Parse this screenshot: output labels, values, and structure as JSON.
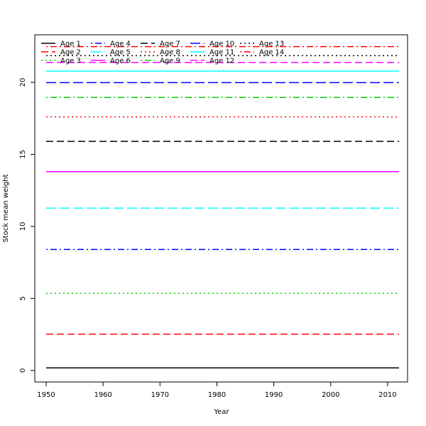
{
  "chart_data": {
    "type": "line",
    "title": "",
    "xlabel": "Year",
    "ylabel": "Stock mean weight",
    "xlim": [
      1948,
      2013.5
    ],
    "ylim": [
      -0.8,
      23.3
    ],
    "xticks": [
      1950,
      1960,
      1970,
      1980,
      1990,
      2000,
      2010
    ],
    "yticks": [
      0,
      5,
      10,
      15,
      20
    ],
    "x_range": [
      1950,
      2012
    ],
    "grid": false,
    "legend_position": "top-left",
    "series": [
      {
        "name": "Age 1",
        "value": 0.18,
        "color": "#000000",
        "dash": "solid"
      },
      {
        "name": "Age 2",
        "value": 2.52,
        "color": "#FF0000",
        "dash": "dashed"
      },
      {
        "name": "Age 3",
        "value": 5.35,
        "color": "#00CD00",
        "dash": "dotted"
      },
      {
        "name": "Age 4",
        "value": 8.4,
        "color": "#0000FF",
        "dash": "dotdash"
      },
      {
        "name": "Age 5",
        "value": 11.27,
        "color": "#00FFFF",
        "dash": "longdash"
      },
      {
        "name": "Age 6",
        "value": 13.8,
        "color": "#FF00FF",
        "dash": "solid"
      },
      {
        "name": "Age 7",
        "value": 15.9,
        "color": "#000000",
        "dash": "dashed"
      },
      {
        "name": "Age 8",
        "value": 17.6,
        "color": "#FF0000",
        "dash": "dotted"
      },
      {
        "name": "Age 9",
        "value": 18.95,
        "color": "#00CD00",
        "dash": "dotdash"
      },
      {
        "name": "Age 10",
        "value": 19.98,
        "color": "#0000FF",
        "dash": "longdash"
      },
      {
        "name": "Age 11",
        "value": 20.78,
        "color": "#00FFFF",
        "dash": "solid"
      },
      {
        "name": "Age 12",
        "value": 21.38,
        "color": "#FF00FF",
        "dash": "dashed"
      },
      {
        "name": "Age 13",
        "value": 21.85,
        "color": "#000000",
        "dash": "dotted"
      },
      {
        "name": "Age 14",
        "value": 22.48,
        "color": "#FF0000",
        "dash": "dotdash"
      }
    ]
  }
}
